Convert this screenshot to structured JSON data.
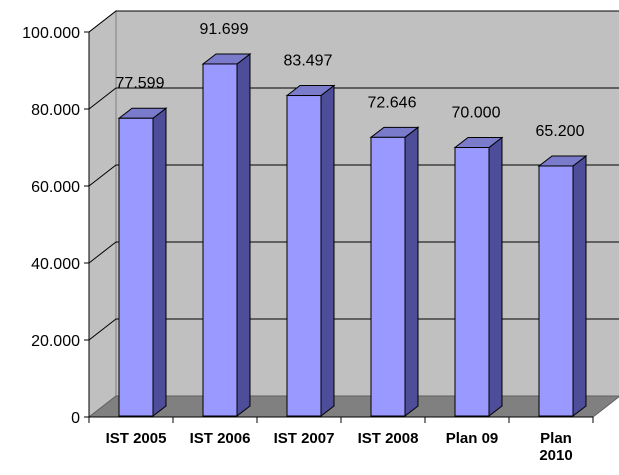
{
  "chart_data": {
    "type": "bar",
    "categories": [
      "IST 2005",
      "IST 2006",
      "IST 2007",
      "IST 2008",
      "Plan 09",
      "Plan 2010"
    ],
    "category_lines": [
      [
        "IST 2005"
      ],
      [
        "IST 2006"
      ],
      [
        "IST 2007"
      ],
      [
        "IST 2008"
      ],
      [
        "Plan 09"
      ],
      [
        "Plan",
        "2010"
      ]
    ],
    "values": [
      77599,
      91699,
      83497,
      72646,
      70000,
      65200
    ],
    "value_labels": [
      "77.599",
      "91.699",
      "83.497",
      "72.646",
      "70.000",
      "65.200"
    ],
    "yticks": [
      0,
      20000,
      40000,
      60000,
      80000,
      100000
    ],
    "ytick_labels": [
      "0",
      "20.000",
      "40.000",
      "60.000",
      "80.000",
      "100.000"
    ],
    "ylim": [
      0,
      100000
    ],
    "title": "",
    "xlabel": "",
    "ylabel": "",
    "grid": true,
    "bar_style": "3d-column",
    "colors": {
      "bar_front": "#9999ff",
      "bar_side": "#4d4d99",
      "bar_top": "#7b7bcc",
      "plot_wall": "#c0c0c0",
      "plot_floor": "#808080",
      "grid": "#000000"
    }
  }
}
